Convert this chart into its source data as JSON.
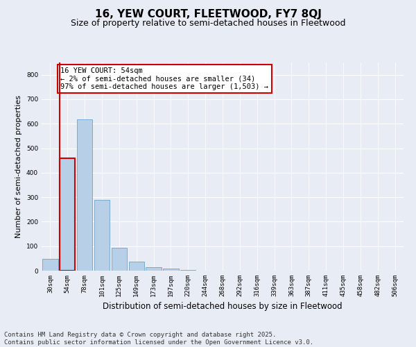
{
  "title": "16, YEW COURT, FLEETWOOD, FY7 8QJ",
  "subtitle": "Size of property relative to semi-detached houses in Fleetwood",
  "xlabel": "Distribution of semi-detached houses by size in Fleetwood",
  "ylabel": "Number of semi-detached properties",
  "categories": [
    "30sqm",
    "54sqm",
    "78sqm",
    "101sqm",
    "125sqm",
    "149sqm",
    "173sqm",
    "197sqm",
    "220sqm",
    "244sqm",
    "268sqm",
    "292sqm",
    "316sqm",
    "339sqm",
    "363sqm",
    "387sqm",
    "411sqm",
    "435sqm",
    "458sqm",
    "482sqm",
    "506sqm"
  ],
  "values": [
    48,
    460,
    617,
    290,
    93,
    37,
    13,
    8,
    4,
    0,
    0,
    0,
    0,
    0,
    0,
    0,
    0,
    0,
    0,
    0,
    0
  ],
  "bar_color": "#b8cfe8",
  "bar_edge_color": "#7aaad0",
  "highlight_bar_index": 1,
  "highlight_edge_color": "#cc0000",
  "annotation_text": "16 YEW COURT: 54sqm\n← 2% of semi-detached houses are smaller (34)\n97% of semi-detached houses are larger (1,503) →",
  "annotation_box_color": "#ffffff",
  "annotation_box_edge_color": "#cc0000",
  "ylim": [
    0,
    850
  ],
  "yticks": [
    0,
    100,
    200,
    300,
    400,
    500,
    600,
    700,
    800
  ],
  "background_color": "#e8edf5",
  "plot_background_color": "#e8edf5",
  "grid_color": "#ffffff",
  "footer_text": "Contains HM Land Registry data © Crown copyright and database right 2025.\nContains public sector information licensed under the Open Government Licence v3.0.",
  "title_fontsize": 11,
  "subtitle_fontsize": 9,
  "xlabel_fontsize": 8.5,
  "ylabel_fontsize": 8,
  "annotation_fontsize": 7.5,
  "footer_fontsize": 6.5,
  "tick_fontsize": 6.5
}
